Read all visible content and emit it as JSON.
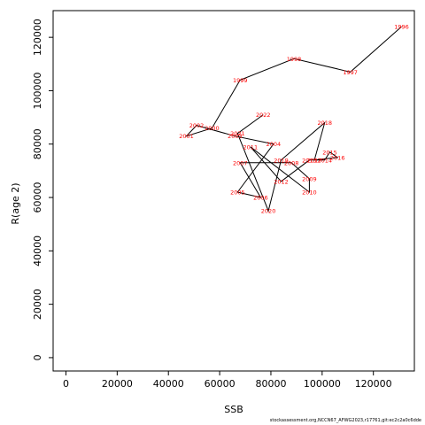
{
  "chart_data": {
    "type": "line",
    "xlabel": "SSB",
    "ylabel": "R(age 2)",
    "xlim": [
      -5000,
      136000
    ],
    "ylim": [
      -5000,
      130000
    ],
    "x_ticks": [
      0,
      20000,
      40000,
      60000,
      80000,
      100000,
      120000
    ],
    "y_ticks": [
      0,
      20000,
      40000,
      60000,
      80000,
      100000,
      120000
    ],
    "grid": false,
    "label_color": "#ff0000",
    "line_color": "#000000",
    "points": [
      {
        "year": "1996",
        "x": 131000,
        "y": 124000
      },
      {
        "year": "1997",
        "x": 111000,
        "y": 107000
      },
      {
        "year": "1998",
        "x": 89000,
        "y": 112000
      },
      {
        "year": "1999",
        "x": 68000,
        "y": 104000
      },
      {
        "year": "2000",
        "x": 57000,
        "y": 86000
      },
      {
        "year": "2001",
        "x": 47000,
        "y": 83000
      },
      {
        "year": "2002",
        "x": 51000,
        "y": 87000
      },
      {
        "year": "2003",
        "x": 66000,
        "y": 83000
      },
      {
        "year": "2004",
        "x": 81000,
        "y": 80000
      },
      {
        "year": "2005",
        "x": 67000,
        "y": 62000
      },
      {
        "year": "2006",
        "x": 76000,
        "y": 60000
      },
      {
        "year": "2007",
        "x": 68000,
        "y": 73000
      },
      {
        "year": "2008",
        "x": 88000,
        "y": 73000
      },
      {
        "year": "2009",
        "x": 95000,
        "y": 67000
      },
      {
        "year": "2010",
        "x": 95000,
        "y": 62000
      },
      {
        "year": "2011",
        "x": 72000,
        "y": 79000
      },
      {
        "year": "2012",
        "x": 84000,
        "y": 66000
      },
      {
        "year": "2013",
        "x": 95000,
        "y": 74000
      },
      {
        "year": "2014",
        "x": 101000,
        "y": 74000
      },
      {
        "year": "2015",
        "x": 103000,
        "y": 77000
      },
      {
        "year": "2016",
        "x": 106000,
        "y": 75000
      },
      {
        "year": "2017",
        "x": 97000,
        "y": 74000
      },
      {
        "year": "2018",
        "x": 101000,
        "y": 88000
      },
      {
        "year": "2019",
        "x": 84000,
        "y": 74000
      },
      {
        "year": "2020",
        "x": 79000,
        "y": 55000
      },
      {
        "year": "2021",
        "x": 67000,
        "y": 84000
      },
      {
        "year": "2022",
        "x": 77000,
        "y": 91000
      }
    ]
  },
  "footer": "stockassessment.org,NCCN67_AFWG2023,r17761,git:ec2c2a0c6dde"
}
